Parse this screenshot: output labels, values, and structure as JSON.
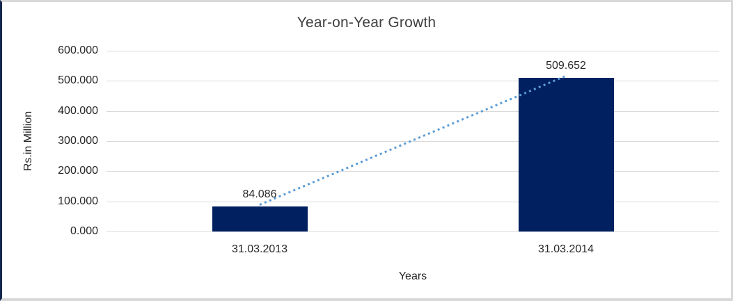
{
  "chart_data": {
    "type": "bar",
    "title": "Year-on-Year Growth",
    "xlabel": "Years",
    "ylabel": "Rs.in Million",
    "categories": [
      "31.03.2013",
      "31.03.2014"
    ],
    "values": [
      84.086,
      509.652
    ],
    "value_labels": [
      "84.086",
      "509.652"
    ],
    "ytick_labels": [
      "600.000",
      "500.000",
      "400.000",
      "300.000",
      "200.000",
      "100.000",
      "0.000"
    ],
    "ylim": [
      0,
      600
    ],
    "grid": "horizontal",
    "legend": "none",
    "trendline": {
      "style": "dotted",
      "from_value": 84.086,
      "to_value": 509.652,
      "color": "#5b9bd5"
    },
    "colors": {
      "bar": "#002060",
      "gridline": "#d9d9d9",
      "title_text": "#404040",
      "axis_text": "#262626",
      "frame_border": "#d9d9d9",
      "frame_left_edge": "#14274e"
    }
  }
}
